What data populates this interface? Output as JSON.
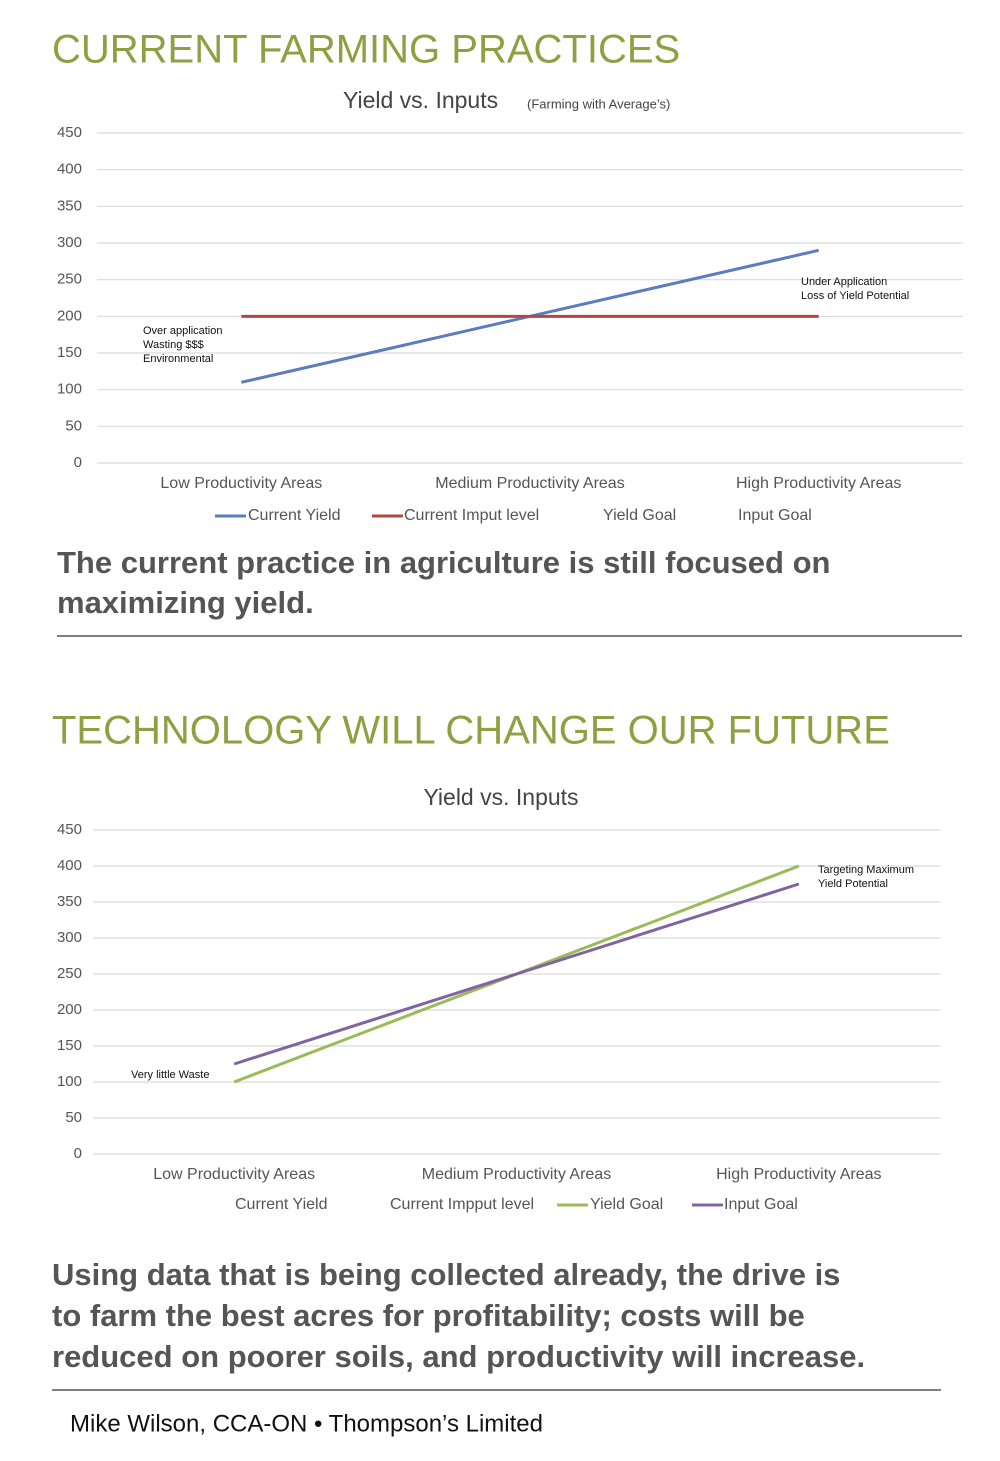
{
  "sections": [
    {
      "heading": "CURRENT FARMING PRACTICES",
      "caption": [
        "The current practice in agriculture is still focused on",
        "maximizing yield."
      ]
    },
    {
      "heading": "TECHNOLOGY WILL CHANGE OUR FUTURE",
      "caption": [
        "Using data that is being collected already, the drive is",
        "to farm the best acres for profitability; costs will be",
        "reduced on poorer soils, and productivity will increase."
      ]
    }
  ],
  "chart_data": [
    {
      "type": "line",
      "title": "Yield vs. Inputs",
      "subtitle": "(Farming with Average’s)",
      "categories": [
        "Low Productivity Areas",
        "Medium Productivity Areas",
        "High Productivity Areas"
      ],
      "series": [
        {
          "name": "Current Yield",
          "color": "#5b7dbf",
          "values": [
            110,
            200,
            290
          ]
        },
        {
          "name": "Current Imput level",
          "color": "#b5463f",
          "values": [
            200,
            200,
            200
          ]
        },
        {
          "name": "Yield Goal",
          "values": [
            null,
            null,
            null
          ]
        },
        {
          "name": "Input Goal",
          "values": [
            null,
            null,
            null
          ]
        }
      ],
      "ylim": [
        0,
        450
      ],
      "yticks": [
        0,
        50,
        100,
        150,
        200,
        250,
        300,
        350,
        400,
        450
      ],
      "grid": true,
      "annotations": [
        [
          "Over application",
          "Wasting $$$",
          "Environmental"
        ],
        [
          "Under Application",
          "Loss of Yield Potential"
        ]
      ]
    },
    {
      "type": "line",
      "title": "Yield vs. Inputs",
      "categories": [
        "Low Productivity Areas",
        "Medium Productivity Areas",
        "High Productivity Areas"
      ],
      "series": [
        {
          "name": "Current Yield",
          "values": [
            null,
            null,
            null
          ]
        },
        {
          "name": "Current Impput level",
          "values": [
            null,
            null,
            null
          ]
        },
        {
          "name": "Yield Goal",
          "color": "#9bbb59",
          "values": [
            100,
            250,
            400
          ]
        },
        {
          "name": "Input Goal",
          "color": "#8064a2",
          "values": [
            125,
            250,
            375
          ]
        }
      ],
      "ylim": [
        0,
        450
      ],
      "yticks": [
        0,
        50,
        100,
        150,
        200,
        250,
        300,
        350,
        400,
        450
      ],
      "grid": true,
      "annotations": [
        [
          "Very little Waste"
        ],
        [
          "Targeting Maximum",
          "Yield Potential"
        ]
      ]
    }
  ],
  "footer": "Mike Wilson, CCA-ON • Thompson’s Limited"
}
